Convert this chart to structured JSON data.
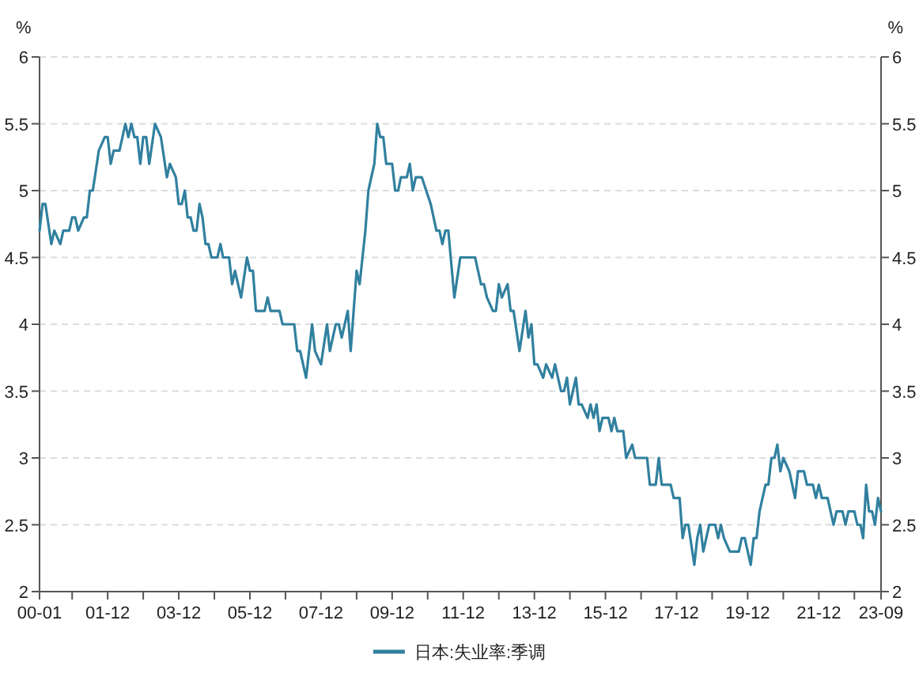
{
  "chart_data": {
    "type": "line",
    "ylabel": "%",
    "y2label": "%",
    "x": [
      "2000-01",
      "2000-02",
      "2000-03",
      "2000-05",
      "2000-06",
      "2000-08",
      "2000-09",
      "2000-11",
      "2000-12",
      "2001-01",
      "2001-02",
      "2001-04",
      "2001-05",
      "2001-06",
      "2001-07",
      "2001-09",
      "2001-11",
      "2001-12",
      "2002-01",
      "2002-02",
      "2002-04",
      "2002-06",
      "2002-07",
      "2002-08",
      "2002-09",
      "2002-10",
      "2002-11",
      "2002-12",
      "2003-01",
      "2003-02",
      "2003-04",
      "2003-06",
      "2003-08",
      "2003-09",
      "2003-11",
      "2003-12",
      "2004-01",
      "2004-02",
      "2004-03",
      "2004-04",
      "2004-05",
      "2004-06",
      "2004-07",
      "2004-08",
      "2004-09",
      "2004-10",
      "2004-11",
      "2005-01",
      "2005-02",
      "2005-03",
      "2005-05",
      "2005-06",
      "2005-07",
      "2005-08",
      "2005-09",
      "2005-11",
      "2005-12",
      "2006-01",
      "2006-02",
      "2006-05",
      "2006-06",
      "2006-07",
      "2006-10",
      "2006-11",
      "2007-03",
      "2007-04",
      "2007-05",
      "2007-07",
      "2007-09",
      "2007-10",
      "2007-12",
      "2008-02",
      "2008-03",
      "2008-05",
      "2008-06",
      "2008-07",
      "2008-09",
      "2008-10",
      "2008-12",
      "2009-01",
      "2009-03",
      "2009-04",
      "2009-05",
      "2009-06",
      "2009-07",
      "2009-08",
      "2009-09",
      "2009-10",
      "2009-12",
      "2010-01",
      "2010-02",
      "2010-03",
      "2010-05",
      "2010-06",
      "2010-07",
      "2010-08",
      "2010-10",
      "2011-01",
      "2011-03",
      "2011-04",
      "2011-05",
      "2011-06",
      "2011-07",
      "2011-09",
      "2011-11",
      "2011-12",
      "2012-04",
      "2012-06",
      "2012-07",
      "2012-08",
      "2012-10",
      "2012-11",
      "2012-12",
      "2013-01",
      "2013-03",
      "2013-04",
      "2013-05",
      "2013-07",
      "2013-09",
      "2013-10",
      "2013-11",
      "2013-12",
      "2014-01",
      "2014-03",
      "2014-04",
      "2014-06",
      "2014-07",
      "2014-09",
      "2014-10",
      "2014-11",
      "2014-12",
      "2015-02",
      "2015-03",
      "2015-04",
      "2015-06",
      "2015-07",
      "2015-08",
      "2015-09",
      "2015-10",
      "2015-11",
      "2016-01",
      "2016-02",
      "2016-03",
      "2016-04",
      "2016-06",
      "2016-07",
      "2016-09",
      "2016-10",
      "2017-02",
      "2017-03",
      "2017-05",
      "2017-06",
      "2017-07",
      "2017-10",
      "2017-11",
      "2018-01",
      "2018-02",
      "2018-03",
      "2018-04",
      "2018-06",
      "2018-07",
      "2018-08",
      "2018-09",
      "2018-11",
      "2019-01",
      "2019-02",
      "2019-03",
      "2019-04",
      "2019-06",
      "2019-09",
      "2019-10",
      "2019-11",
      "2020-01",
      "2020-02",
      "2020-03",
      "2020-04",
      "2020-06",
      "2020-07",
      "2020-08",
      "2020-09",
      "2020-10",
      "2020-11",
      "2020-12",
      "2021-02",
      "2021-04",
      "2021-05",
      "2021-07",
      "2021-08",
      "2021-10",
      "2021-11",
      "2021-12",
      "2022-01",
      "2022-03",
      "2022-05",
      "2022-06",
      "2022-08",
      "2022-09",
      "2022-10",
      "2022-12",
      "2023-01",
      "2023-02",
      "2023-03",
      "2023-04",
      "2023-05",
      "2023-06",
      "2023-07",
      "2023-08",
      "2023-09"
    ],
    "series": [
      {
        "name": "日本:失业率:季调",
        "color": "#31809f",
        "values": [
          4.7,
          4.9,
          4.9,
          4.6,
          4.7,
          4.6,
          4.7,
          4.7,
          4.8,
          4.8,
          4.7,
          4.8,
          4.8,
          5.0,
          5.0,
          5.3,
          5.4,
          5.4,
          5.2,
          5.3,
          5.3,
          5.5,
          5.4,
          5.5,
          5.4,
          5.4,
          5.2,
          5.4,
          5.4,
          5.2,
          5.5,
          5.4,
          5.1,
          5.2,
          5.1,
          4.9,
          4.9,
          5.0,
          4.8,
          4.8,
          4.7,
          4.7,
          4.9,
          4.8,
          4.6,
          4.6,
          4.5,
          4.5,
          4.6,
          4.5,
          4.5,
          4.3,
          4.4,
          4.3,
          4.2,
          4.5,
          4.4,
          4.4,
          4.1,
          4.1,
          4.2,
          4.1,
          4.1,
          4.0,
          4.0,
          3.8,
          3.8,
          3.6,
          4.0,
          3.8,
          3.7,
          4.0,
          3.8,
          4.0,
          4.0,
          3.9,
          4.1,
          3.8,
          4.4,
          4.3,
          4.7,
          5.0,
          5.1,
          5.2,
          5.5,
          5.4,
          5.4,
          5.2,
          5.2,
          5.0,
          5.0,
          5.1,
          5.1,
          5.2,
          5.0,
          5.1,
          5.1,
          4.9,
          4.7,
          4.7,
          4.6,
          4.7,
          4.7,
          4.2,
          4.5,
          4.5,
          4.5,
          4.3,
          4.3,
          4.2,
          4.1,
          4.1,
          4.3,
          4.2,
          4.3,
          4.1,
          4.1,
          3.8,
          4.1,
          3.9,
          4.0,
          3.7,
          3.7,
          3.6,
          3.7,
          3.6,
          3.7,
          3.5,
          3.5,
          3.6,
          3.4,
          3.6,
          3.4,
          3.4,
          3.3,
          3.4,
          3.3,
          3.4,
          3.2,
          3.3,
          3.3,
          3.2,
          3.3,
          3.2,
          3.2,
          3.0,
          3.1,
          3.0,
          3.0,
          2.8,
          2.8,
          3.0,
          2.8,
          2.8,
          2.7,
          2.7,
          2.4,
          2.5,
          2.5,
          2.2,
          2.4,
          2.5,
          2.3,
          2.5,
          2.5,
          2.4,
          2.5,
          2.4,
          2.3,
          2.3,
          2.4,
          2.4,
          2.2,
          2.4,
          2.4,
          2.6,
          2.8,
          2.8,
          3.0,
          3.0,
          3.1,
          2.9,
          3.0,
          2.9,
          2.7,
          2.9,
          2.9,
          2.8,
          2.8,
          2.7,
          2.8,
          2.7,
          2.7,
          2.5,
          2.6,
          2.6,
          2.5,
          2.6,
          2.6,
          2.5,
          2.5,
          2.4,
          2.8,
          2.6,
          2.6,
          2.5,
          2.7,
          2.6
        ]
      }
    ],
    "xlim": [
      "2000-01",
      "2023-09"
    ],
    "xticks": [
      {
        "value": "2000-01",
        "label": "00-01"
      },
      {
        "value": "2000-12",
        "label": null
      },
      {
        "value": "2001-12",
        "label": "01-12"
      },
      {
        "value": "2002-12",
        "label": null
      },
      {
        "value": "2003-12",
        "label": "03-12"
      },
      {
        "value": "2004-12",
        "label": null
      },
      {
        "value": "2005-12",
        "label": "05-12"
      },
      {
        "value": "2006-12",
        "label": null
      },
      {
        "value": "2007-12",
        "label": "07-12"
      },
      {
        "value": "2008-12",
        "label": null
      },
      {
        "value": "2009-12",
        "label": "09-12"
      },
      {
        "value": "2010-12",
        "label": null
      },
      {
        "value": "2011-12",
        "label": "11-12"
      },
      {
        "value": "2012-12",
        "label": null
      },
      {
        "value": "2013-12",
        "label": "13-12"
      },
      {
        "value": "2014-12",
        "label": null
      },
      {
        "value": "2015-12",
        "label": "15-12"
      },
      {
        "value": "2016-12",
        "label": null
      },
      {
        "value": "2017-12",
        "label": "17-12"
      },
      {
        "value": "2018-12",
        "label": null
      },
      {
        "value": "2019-12",
        "label": "19-12"
      },
      {
        "value": "2020-12",
        "label": null
      },
      {
        "value": "2021-12",
        "label": "21-12"
      },
      {
        "value": "2022-12",
        "label": null
      },
      {
        "value": "2023-09",
        "label": "23-09"
      }
    ],
    "ylim": [
      2,
      6
    ],
    "yticks": [
      2,
      2.5,
      3,
      3.5,
      4,
      4.5,
      5,
      5.5,
      6
    ],
    "y2lim": [
      2,
      6
    ],
    "y2ticks": [
      2,
      2.5,
      3,
      3.5,
      4,
      4.5,
      5,
      5.5,
      6
    ],
    "grid": "y",
    "legend": "bottom",
    "marker": "none",
    "line_style": "solid"
  }
}
